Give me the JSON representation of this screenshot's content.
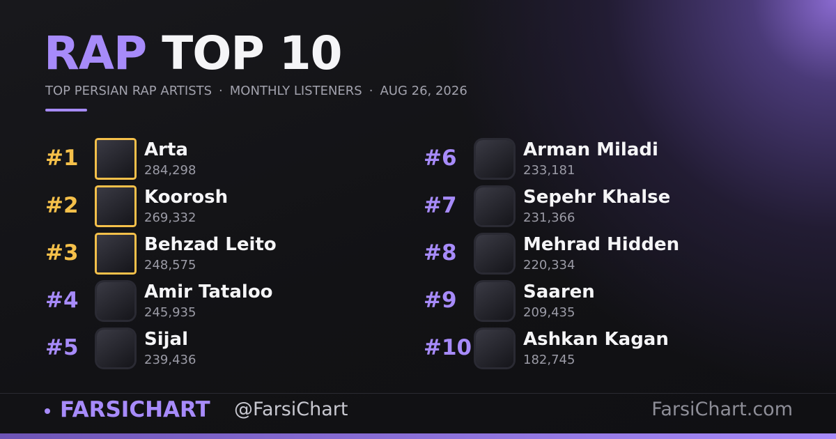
{
  "header": {
    "title_accent": "RAP",
    "title_main": "TOP 10",
    "subtitle": [
      "TOP PERSIAN RAP ARTISTS",
      "MONTHLY LISTENERS",
      "AUG 26, 2026"
    ],
    "separator": "·"
  },
  "entries": [
    {
      "rank": "#1",
      "name": "Arta",
      "listeners": "284,298"
    },
    {
      "rank": "#2",
      "name": "Koorosh",
      "listeners": "269,332"
    },
    {
      "rank": "#3",
      "name": "Behzad Leito",
      "listeners": "248,575"
    },
    {
      "rank": "#4",
      "name": "Amir Tataloo",
      "listeners": "245,935"
    },
    {
      "rank": "#5",
      "name": "Sijal",
      "listeners": "239,436"
    },
    {
      "rank": "#6",
      "name": "Arman Miladi",
      "listeners": "233,181"
    },
    {
      "rank": "#7",
      "name": "Sepehr Khalse",
      "listeners": "231,366"
    },
    {
      "rank": "#8",
      "name": "Mehrad Hidden",
      "listeners": "220,334"
    },
    {
      "rank": "#9",
      "name": "Saaren",
      "listeners": "209,435"
    },
    {
      "rank": "#10",
      "name": "Ashkan Kagan",
      "listeners": "182,745"
    }
  ],
  "footer": {
    "brand": "FARSICHART",
    "handle": "@FarsiChart",
    "site": "FarsiChart.com"
  }
}
